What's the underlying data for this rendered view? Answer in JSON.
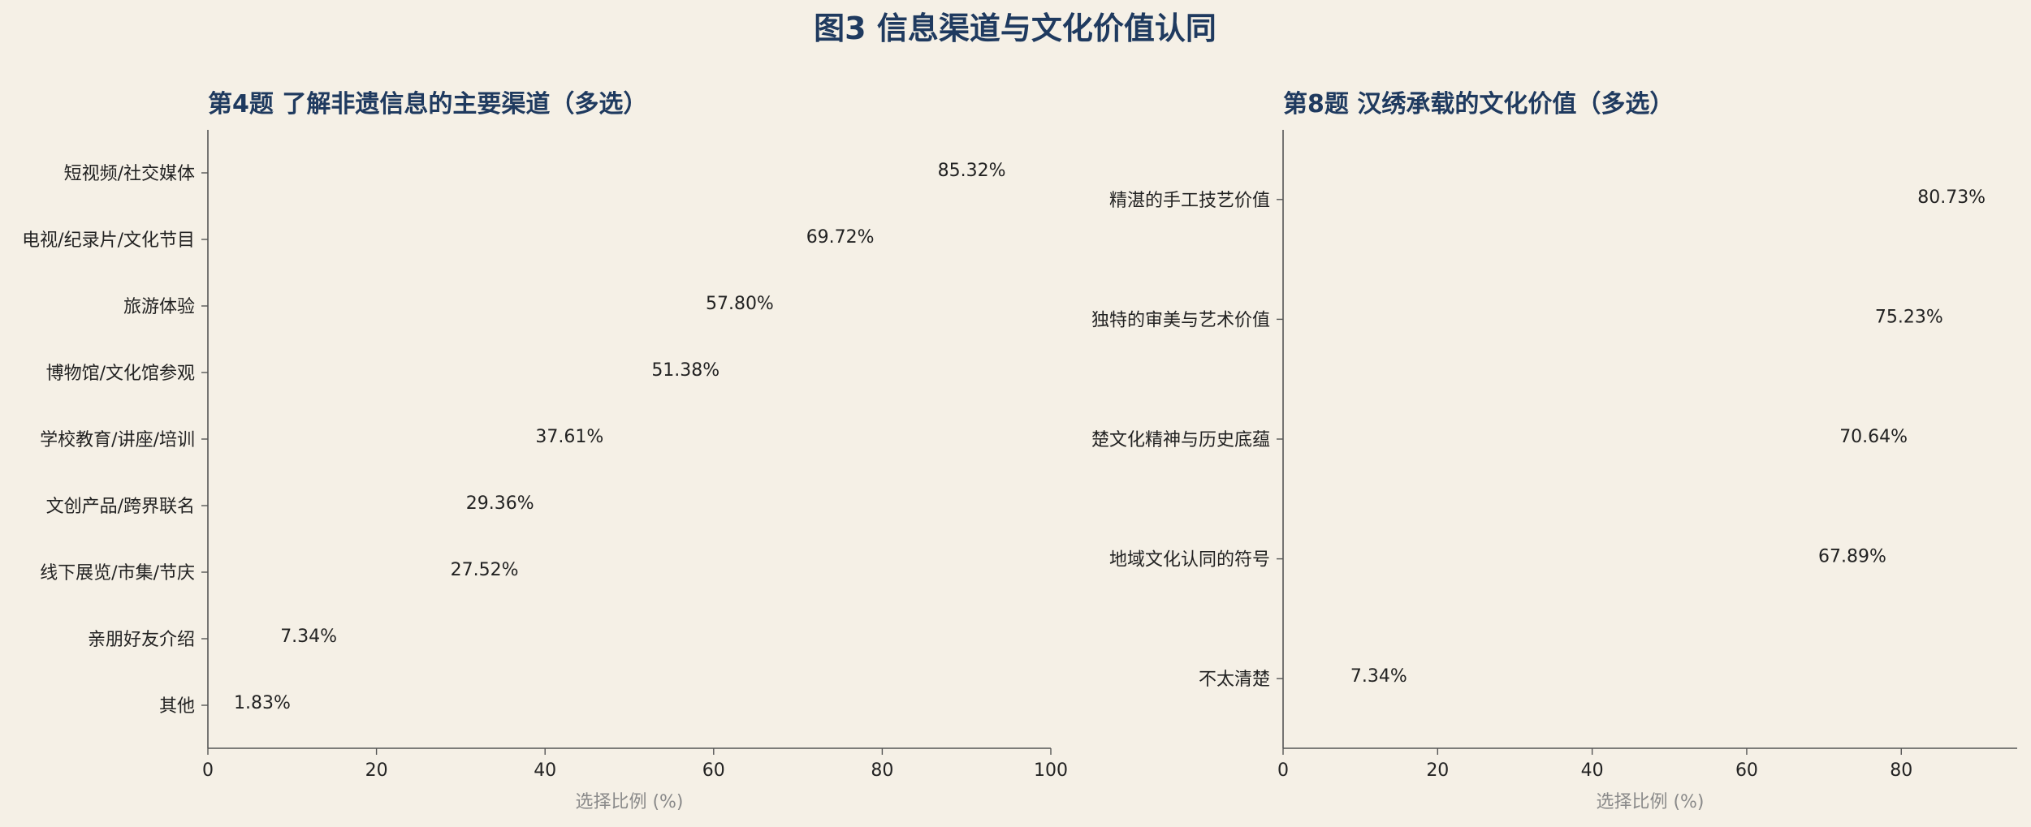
{
  "figure": {
    "title": "图3 信息渠道与文化价值认同"
  },
  "colors": {
    "background": "#f5f0e6",
    "title": "#1f3a5f",
    "highlight_bar": "#b03a2e",
    "normal_bar": "#c49f5c",
    "axis": "#555555",
    "tick_text": "#222222",
    "axis_label": "#8a8a8a"
  },
  "chart_data": [
    {
      "type": "bar",
      "orientation": "horizontal",
      "title": "第4题 了解非遗信息的主要渠道（多选）",
      "xlabel": "选择比例 (%)",
      "xlim": [
        0,
        100
      ],
      "xticks": [
        0,
        20,
        40,
        60,
        80,
        100
      ],
      "grid": false,
      "categories": [
        "短视频/社交媒体",
        "电视/纪录片/文化节目",
        "旅游体验",
        "博物馆/文化馆参观",
        "学校教育/讲座/培训",
        "文创产品/跨界联名",
        "线下展览/市集/节庆",
        "亲朋好友介绍",
        "其他"
      ],
      "values": [
        85.32,
        69.72,
        57.8,
        51.38,
        37.61,
        29.36,
        27.52,
        7.34,
        1.83
      ],
      "value_labels": [
        "85.32%",
        "69.72%",
        "57.80%",
        "51.38%",
        "37.61%",
        "29.36%",
        "27.52%",
        "7.34%",
        "1.83%"
      ],
      "highlight_index": 0
    },
    {
      "type": "bar",
      "orientation": "horizontal",
      "title": "第8题 汉绣承载的文化价值（多选）",
      "xlabel": "选择比例 (%)",
      "xlim": [
        0,
        95
      ],
      "xticks": [
        0,
        20,
        40,
        60,
        80
      ],
      "grid": false,
      "categories": [
        "精湛的手工技艺价值",
        "独特的审美与艺术价值",
        "楚文化精神与历史底蕴",
        "地域文化认同的符号",
        "不太清楚"
      ],
      "values": [
        80.73,
        75.23,
        70.64,
        67.89,
        7.34
      ],
      "value_labels": [
        "80.73%",
        "75.23%",
        "70.64%",
        "67.89%",
        "7.34%"
      ],
      "highlight_index": 0
    }
  ]
}
